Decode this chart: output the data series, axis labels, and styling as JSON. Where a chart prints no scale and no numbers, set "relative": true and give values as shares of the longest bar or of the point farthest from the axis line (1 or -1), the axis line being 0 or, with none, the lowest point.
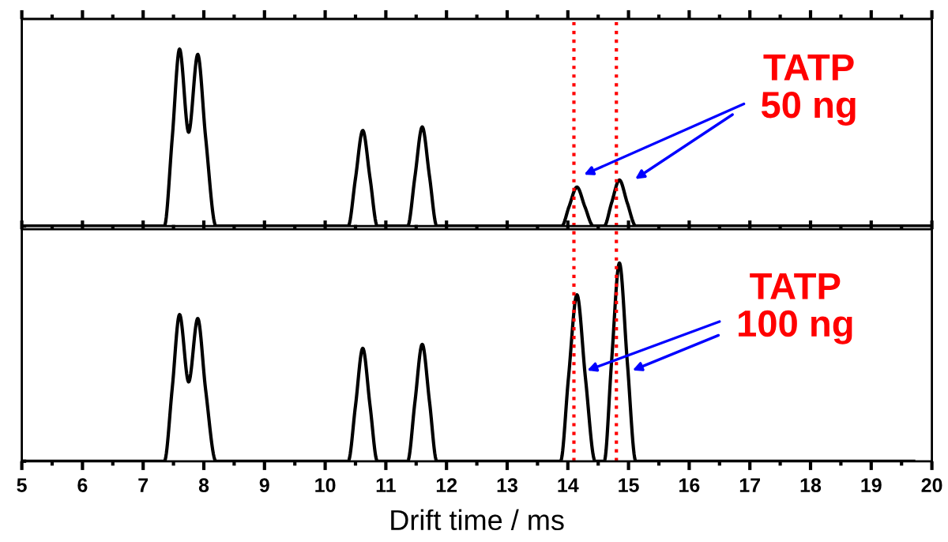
{
  "chart_data": [
    {
      "type": "line",
      "relative": true,
      "tick_labels": false,
      "xlim": [
        5,
        20
      ],
      "xticks": [
        5,
        6,
        7,
        8,
        9,
        10,
        11,
        12,
        13,
        14,
        15,
        16,
        17,
        18,
        19,
        20
      ],
      "series": [
        {
          "color": "#000000",
          "x": [
            5,
            7.35,
            7.48,
            7.6,
            7.75,
            7.9,
            8.03,
            8.2,
            10.38,
            10.5,
            10.62,
            10.74,
            10.86,
            11.36,
            11.48,
            11.6,
            11.72,
            11.84,
            13.9,
            14.02,
            14.15,
            14.28,
            14.42,
            14.6,
            14.72,
            14.85,
            14.98,
            15.12,
            20
          ],
          "values": [
            0,
            0,
            0.5,
            1,
            0.53,
            0.97,
            0.5,
            0,
            0,
            0.27,
            0.54,
            0.27,
            0,
            0,
            0.28,
            0.56,
            0.28,
            0,
            0,
            0.11,
            0.22,
            0.11,
            0,
            0,
            0.13,
            0.26,
            0.13,
            0,
            0
          ]
        }
      ],
      "ref_lines": [
        {
          "axis": "x",
          "value": 14.1,
          "color": "#ff0000",
          "line_style": "dotted"
        },
        {
          "axis": "x",
          "value": 14.8,
          "color": "#ff0000",
          "line_style": "dotted"
        }
      ],
      "annotations": [
        {
          "text": "TATP\n50 ng",
          "x": 14.2,
          "y": 0.28
        }
      ]
    },
    {
      "type": "line",
      "relative": true,
      "tick_labels": "x",
      "xlabel": "Drift time / ms",
      "xlim": [
        5,
        20
      ],
      "xticks": [
        5,
        6,
        7,
        8,
        9,
        10,
        11,
        12,
        13,
        14,
        15,
        16,
        17,
        18,
        19,
        20
      ],
      "series": [
        {
          "color": "#000000",
          "x": [
            5,
            7.35,
            7.48,
            7.6,
            7.75,
            7.9,
            8.03,
            8.2,
            10.38,
            10.5,
            10.62,
            10.74,
            10.86,
            11.36,
            11.48,
            11.6,
            11.72,
            11.84,
            13.88,
            14.01,
            14.15,
            14.29,
            14.45,
            14.6,
            14.72,
            14.85,
            14.98,
            15.12,
            19.7
          ],
          "values": [
            0,
            0,
            0.37,
            0.74,
            0.4,
            0.72,
            0.36,
            0,
            0,
            0.28,
            0.57,
            0.28,
            0,
            0,
            0.3,
            0.59,
            0.3,
            0,
            0,
            0.42,
            0.84,
            0.42,
            0,
            0,
            0.5,
            1,
            0.5,
            0,
            0
          ]
        }
      ],
      "ref_lines": [
        {
          "axis": "x",
          "value": 14.1,
          "color": "#ff0000",
          "line_style": "dotted"
        },
        {
          "axis": "x",
          "value": 14.8,
          "color": "#ff0000",
          "line_style": "dotted"
        }
      ],
      "annotations": [
        {
          "text": "TATP\n100 ng",
          "x": 14.25,
          "y": 0.45
        }
      ]
    }
  ]
}
